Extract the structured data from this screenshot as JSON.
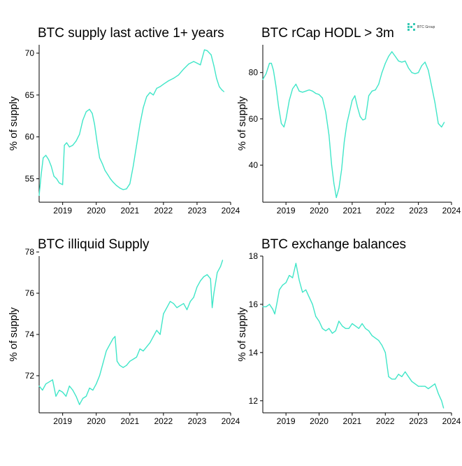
{
  "brand": {
    "label": "BTC Group",
    "color": "#36c9b4"
  },
  "series_color": "#40e6c8",
  "chart_data": [
    {
      "type": "line",
      "title": "BTC supply last active 1+ years",
      "ylabel": "% of supply",
      "xlabel": "",
      "xlim": [
        2018.3,
        2024.0
      ],
      "ylim": [
        52.2,
        71.0
      ],
      "x_ticks": [
        2019,
        2020,
        2021,
        2022,
        2023,
        2024
      ],
      "x_tick_labels": [
        "2019",
        "2020",
        "2021",
        "2022",
        "2023",
        "2024"
      ],
      "y_ticks": [
        55,
        60,
        65,
        70
      ],
      "y_tick_labels": [
        "55",
        "60",
        "65",
        "70"
      ],
      "series": [
        {
          "x": [
            2018.3,
            2018.36,
            2018.42,
            2018.5,
            2018.58,
            2018.66,
            2018.74,
            2018.82,
            2018.9,
            2019.0,
            2019.05,
            2019.12,
            2019.2,
            2019.3,
            2019.4,
            2019.5,
            2019.6,
            2019.7,
            2019.8,
            2019.88,
            2019.95,
            2020.02,
            2020.1,
            2020.18,
            2020.26,
            2020.34,
            2020.42,
            2020.5,
            2020.6,
            2020.7,
            2020.8,
            2020.9,
            2021.0,
            2021.1,
            2021.2,
            2021.3,
            2021.4,
            2021.5,
            2021.6,
            2021.7,
            2021.8,
            2021.9,
            2022.0,
            2022.15,
            2022.3,
            2022.45,
            2022.6,
            2022.75,
            2022.9,
            2023.0,
            2023.1,
            2023.22,
            2023.3,
            2023.42,
            2023.5,
            2023.58,
            2023.66,
            2023.74,
            2023.8
          ],
          "y": [
            53.0,
            55.5,
            57.5,
            57.8,
            57.3,
            56.5,
            55.3,
            55.0,
            54.5,
            54.3,
            59.0,
            59.3,
            58.8,
            59.0,
            59.5,
            60.3,
            62.0,
            63.0,
            63.3,
            62.8,
            61.5,
            59.5,
            57.5,
            56.8,
            56.0,
            55.5,
            55.0,
            54.6,
            54.2,
            53.9,
            53.7,
            53.8,
            54.4,
            56.5,
            59.0,
            61.5,
            63.5,
            64.8,
            65.3,
            65.0,
            65.8,
            66.0,
            66.3,
            66.7,
            67.0,
            67.4,
            68.1,
            68.7,
            69.0,
            68.8,
            68.6,
            70.4,
            70.3,
            69.8,
            68.5,
            67.0,
            66.0,
            65.6,
            65.4
          ]
        }
      ]
    },
    {
      "type": "line",
      "title": "BTC rCap HODL > 3m",
      "ylabel": "% of supply",
      "xlabel": "",
      "xlim": [
        2018.3,
        2024.0
      ],
      "ylim": [
        24.0,
        92.0
      ],
      "x_ticks": [
        2019,
        2020,
        2021,
        2022,
        2023,
        2024
      ],
      "x_tick_labels": [
        "2019",
        "2020",
        "2021",
        "2022",
        "2023",
        "2024"
      ],
      "y_ticks": [
        40,
        60,
        80
      ],
      "y_tick_labels": [
        "40",
        "60",
        "80"
      ],
      "series": [
        {
          "x": [
            2018.3,
            2018.4,
            2018.5,
            2018.56,
            2018.62,
            2018.7,
            2018.78,
            2018.86,
            2018.94,
            2019.0,
            2019.1,
            2019.2,
            2019.3,
            2019.4,
            2019.5,
            2019.6,
            2019.7,
            2019.8,
            2019.9,
            2020.0,
            2020.1,
            2020.2,
            2020.3,
            2020.38,
            2020.45,
            2020.52,
            2020.6,
            2020.68,
            2020.76,
            2020.84,
            2020.92,
            2021.0,
            2021.08,
            2021.16,
            2021.24,
            2021.32,
            2021.4,
            2021.5,
            2021.6,
            2021.7,
            2021.8,
            2021.9,
            2022.0,
            2022.1,
            2022.2,
            2022.3,
            2022.4,
            2022.5,
            2022.6,
            2022.7,
            2022.8,
            2022.9,
            2023.0,
            2023.1,
            2023.2,
            2023.3,
            2023.4,
            2023.5,
            2023.6,
            2023.7,
            2023.78
          ],
          "y": [
            77.0,
            79.5,
            84.0,
            84.0,
            81.0,
            74.0,
            65.0,
            58.0,
            56.5,
            60.0,
            68.0,
            73.0,
            75.0,
            72.0,
            71.5,
            72.0,
            72.5,
            72.0,
            71.0,
            70.5,
            69.0,
            63.0,
            53.0,
            40.0,
            32.0,
            26.0,
            30.0,
            38.0,
            50.0,
            58.0,
            63.0,
            68.0,
            70.0,
            65.0,
            61.0,
            59.5,
            60.0,
            70.0,
            72.0,
            72.5,
            75.0,
            80.0,
            84.0,
            87.0,
            89.0,
            87.0,
            85.0,
            84.5,
            85.0,
            82.0,
            80.0,
            79.5,
            80.0,
            83.0,
            84.5,
            81.0,
            74.0,
            67.0,
            58.0,
            56.5,
            58.5
          ]
        }
      ]
    },
    {
      "type": "line",
      "title": "BTC illiquid Supply",
      "ylabel": "% of supply",
      "xlabel": "",
      "xlim": [
        2018.3,
        2024.0
      ],
      "ylim": [
        70.2,
        77.8
      ],
      "x_ticks": [
        2019,
        2020,
        2021,
        2022,
        2023,
        2024
      ],
      "x_tick_labels": [
        "2019",
        "2020",
        "2021",
        "2022",
        "2023",
        "2024"
      ],
      "y_ticks": [
        72,
        74,
        76,
        78
      ],
      "y_tick_labels": [
        "72",
        "74",
        "76",
        "78"
      ],
      "series": [
        {
          "x": [
            2018.3,
            2018.4,
            2018.5,
            2018.6,
            2018.7,
            2018.8,
            2018.9,
            2019.0,
            2019.1,
            2019.2,
            2019.3,
            2019.4,
            2019.5,
            2019.6,
            2019.7,
            2019.8,
            2019.9,
            2020.0,
            2020.1,
            2020.2,
            2020.3,
            2020.4,
            2020.5,
            2020.56,
            2020.62,
            2020.7,
            2020.8,
            2020.9,
            2021.0,
            2021.1,
            2021.2,
            2021.3,
            2021.4,
            2021.5,
            2021.6,
            2021.7,
            2021.8,
            2021.9,
            2022.0,
            2022.1,
            2022.2,
            2022.3,
            2022.4,
            2022.5,
            2022.6,
            2022.7,
            2022.8,
            2022.9,
            2023.0,
            2023.1,
            2023.2,
            2023.3,
            2023.4,
            2023.45,
            2023.5,
            2023.6,
            2023.7,
            2023.76
          ],
          "y": [
            71.5,
            71.3,
            71.6,
            71.7,
            71.8,
            71.0,
            71.3,
            71.2,
            71.0,
            71.5,
            71.3,
            71.0,
            70.6,
            70.9,
            71.0,
            71.4,
            71.3,
            71.6,
            72.0,
            72.6,
            73.2,
            73.5,
            73.8,
            73.9,
            72.7,
            72.5,
            72.4,
            72.5,
            72.7,
            72.8,
            72.9,
            73.3,
            73.2,
            73.4,
            73.6,
            73.9,
            74.2,
            74.0,
            75.0,
            75.3,
            75.6,
            75.5,
            75.3,
            75.4,
            75.5,
            75.2,
            75.6,
            75.8,
            76.3,
            76.6,
            76.8,
            76.9,
            76.7,
            75.3,
            76.0,
            77.0,
            77.3,
            77.6
          ]
        }
      ]
    },
    {
      "type": "line",
      "title": "BTC exchange balances",
      "ylabel": "% of supply",
      "xlabel": "",
      "xlim": [
        2018.3,
        2024.0
      ],
      "ylim": [
        11.5,
        18.0
      ],
      "x_ticks": [
        2019,
        2020,
        2021,
        2022,
        2023,
        2024
      ],
      "x_tick_labels": [
        "2019",
        "2020",
        "2021",
        "2022",
        "2023",
        "2024"
      ],
      "y_ticks": [
        12,
        14,
        16,
        18
      ],
      "y_tick_labels": [
        "12",
        "14",
        "16",
        "18"
      ],
      "series": [
        {
          "x": [
            2018.3,
            2018.4,
            2018.5,
            2018.6,
            2018.66,
            2018.72,
            2018.8,
            2018.9,
            2019.0,
            2019.1,
            2019.2,
            2019.3,
            2019.4,
            2019.5,
            2019.6,
            2019.7,
            2019.8,
            2019.9,
            2020.0,
            2020.1,
            2020.2,
            2020.3,
            2020.4,
            2020.5,
            2020.6,
            2020.7,
            2020.8,
            2020.9,
            2021.0,
            2021.1,
            2021.2,
            2021.3,
            2021.4,
            2021.5,
            2021.6,
            2021.7,
            2021.8,
            2021.9,
            2022.0,
            2022.1,
            2022.2,
            2022.3,
            2022.4,
            2022.5,
            2022.6,
            2022.7,
            2022.8,
            2022.9,
            2023.0,
            2023.1,
            2023.2,
            2023.3,
            2023.4,
            2023.5,
            2023.6,
            2023.7,
            2023.76
          ],
          "y": [
            15.9,
            15.9,
            16.0,
            15.8,
            15.6,
            16.0,
            16.6,
            16.8,
            16.9,
            17.2,
            17.1,
            17.7,
            17.0,
            16.5,
            16.6,
            16.3,
            16.0,
            15.5,
            15.3,
            15.0,
            14.9,
            15.0,
            14.8,
            14.9,
            15.3,
            15.1,
            15.0,
            15.0,
            15.2,
            15.1,
            15.0,
            15.2,
            15.0,
            14.9,
            14.7,
            14.6,
            14.5,
            14.3,
            14.0,
            13.0,
            12.9,
            12.9,
            13.1,
            13.0,
            13.2,
            13.0,
            12.8,
            12.7,
            12.6,
            12.6,
            12.6,
            12.5,
            12.6,
            12.7,
            12.3,
            12.0,
            11.7
          ]
        }
      ]
    }
  ]
}
